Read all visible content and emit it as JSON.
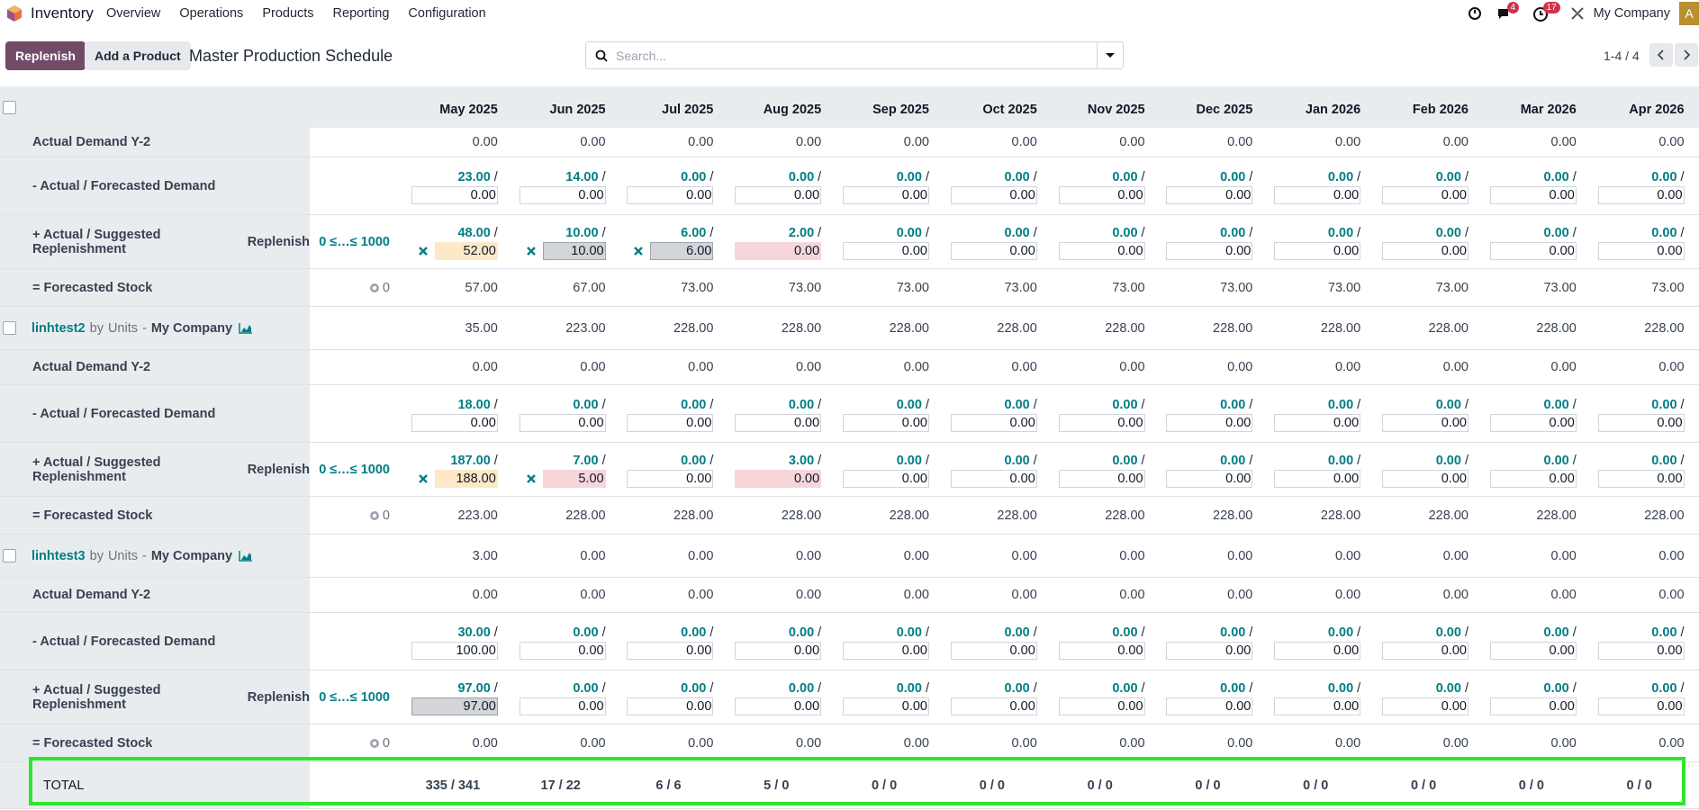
{
  "navbar": {
    "app": "Inventory",
    "menu": [
      "Overview",
      "Operations",
      "Products",
      "Reporting",
      "Configuration"
    ],
    "messages_badge": "4",
    "activities_badge": "17",
    "company": "My Company",
    "avatar": "A"
  },
  "control_panel": {
    "buttons": [
      "Replenish",
      "Add a Product"
    ],
    "title": "Master Production Schedule",
    "search_placeholder": "Search...",
    "pager": "1-4 / 4"
  },
  "table": {
    "months": [
      "May 2025",
      "Jun 2025",
      "Jul 2025",
      "Aug 2025",
      "Sep 2025",
      "Oct 2025",
      "Nov 2025",
      "Dec 2025",
      "Jan 2026",
      "Feb 2026",
      "Mar 2026",
      "Apr 2026"
    ],
    "separator": "/",
    "sections": [
      {
        "product": null,
        "rows": [
          {
            "kind": "y2",
            "label": "Actual Demand Y-2",
            "values": [
              "0.00",
              "0.00",
              "0.00",
              "0.00",
              "0.00",
              "0.00",
              "0.00",
              "0.00",
              "0.00",
              "0.00",
              "0.00",
              "0.00"
            ]
          },
          {
            "kind": "demand",
            "label": "- Actual / Forecasted Demand",
            "actual": [
              "23.00",
              "14.00",
              "0.00",
              "0.00",
              "0.00",
              "0.00",
              "0.00",
              "0.00",
              "0.00",
              "0.00",
              "0.00",
              "0.00"
            ],
            "forecast": [
              "0.00",
              "0.00",
              "0.00",
              "0.00",
              "0.00",
              "0.00",
              "0.00",
              "0.00",
              "0.00",
              "0.00",
              "0.00",
              "0.00"
            ]
          },
          {
            "kind": "replenish",
            "label": "+ Actual / Suggested Replenishment",
            "button": "Replenish",
            "range": "0 ≤…≤ 1000",
            "actual": [
              "48.00",
              "10.00",
              "6.00",
              "2.00",
              "0.00",
              "0.00",
              "0.00",
              "0.00",
              "0.00",
              "0.00",
              "0.00",
              "0.00"
            ],
            "suggested": [
              "52.00",
              "10.00",
              "6.00",
              "0.00",
              "0.00",
              "0.00",
              "0.00",
              "0.00",
              "0.00",
              "0.00",
              "0.00",
              "0.00"
            ],
            "highlight": [
              "warning",
              "muted",
              "muted",
              "danger",
              null,
              null,
              null,
              null,
              null,
              null,
              null,
              null
            ],
            "cancel": [
              true,
              true,
              true,
              false,
              false,
              false,
              false,
              false,
              false,
              false,
              false,
              false
            ]
          },
          {
            "kind": "stock",
            "label": "= Forecasted Stock",
            "safety": "0",
            "values": [
              "57.00",
              "67.00",
              "73.00",
              "73.00",
              "73.00",
              "73.00",
              "73.00",
              "73.00",
              "73.00",
              "73.00",
              "73.00",
              "73.00"
            ]
          }
        ]
      },
      {
        "product": {
          "name": "linhtest2",
          "by": "by",
          "uom": "Units",
          "dash": "-",
          "company": "My Company",
          "values": [
            "35.00",
            "223.00",
            "228.00",
            "228.00",
            "228.00",
            "228.00",
            "228.00",
            "228.00",
            "228.00",
            "228.00",
            "228.00",
            "228.00"
          ]
        },
        "rows": [
          {
            "kind": "y2",
            "label": "Actual Demand Y-2",
            "values": [
              "0.00",
              "0.00",
              "0.00",
              "0.00",
              "0.00",
              "0.00",
              "0.00",
              "0.00",
              "0.00",
              "0.00",
              "0.00",
              "0.00"
            ]
          },
          {
            "kind": "demand",
            "label": "- Actual / Forecasted Demand",
            "actual": [
              "18.00",
              "0.00",
              "0.00",
              "0.00",
              "0.00",
              "0.00",
              "0.00",
              "0.00",
              "0.00",
              "0.00",
              "0.00",
              "0.00"
            ],
            "forecast": [
              "0.00",
              "0.00",
              "0.00",
              "0.00",
              "0.00",
              "0.00",
              "0.00",
              "0.00",
              "0.00",
              "0.00",
              "0.00",
              "0.00"
            ]
          },
          {
            "kind": "replenish",
            "label": "+ Actual / Suggested Replenishment",
            "button": "Replenish",
            "range": "0 ≤…≤ 1000",
            "actual": [
              "187.00",
              "7.00",
              "0.00",
              "3.00",
              "0.00",
              "0.00",
              "0.00",
              "0.00",
              "0.00",
              "0.00",
              "0.00",
              "0.00"
            ],
            "suggested": [
              "188.00",
              "5.00",
              "0.00",
              "0.00",
              "0.00",
              "0.00",
              "0.00",
              "0.00",
              "0.00",
              "0.00",
              "0.00",
              "0.00"
            ],
            "highlight": [
              "warning",
              "danger",
              null,
              "danger",
              null,
              null,
              null,
              null,
              null,
              null,
              null,
              null
            ],
            "cancel": [
              true,
              true,
              false,
              false,
              false,
              false,
              false,
              false,
              false,
              false,
              false,
              false
            ]
          },
          {
            "kind": "stock",
            "label": "= Forecasted Stock",
            "safety": "0",
            "values": [
              "223.00",
              "228.00",
              "228.00",
              "228.00",
              "228.00",
              "228.00",
              "228.00",
              "228.00",
              "228.00",
              "228.00",
              "228.00",
              "228.00"
            ]
          }
        ]
      },
      {
        "product": {
          "name": "linhtest3",
          "by": "by",
          "uom": "Units",
          "dash": "-",
          "company": "My Company",
          "values": [
            "3.00",
            "0.00",
            "0.00",
            "0.00",
            "0.00",
            "0.00",
            "0.00",
            "0.00",
            "0.00",
            "0.00",
            "0.00",
            "0.00"
          ]
        },
        "rows": [
          {
            "kind": "y2",
            "label": "Actual Demand Y-2",
            "values": [
              "0.00",
              "0.00",
              "0.00",
              "0.00",
              "0.00",
              "0.00",
              "0.00",
              "0.00",
              "0.00",
              "0.00",
              "0.00",
              "0.00"
            ]
          },
          {
            "kind": "demand",
            "label": "- Actual / Forecasted Demand",
            "actual": [
              "30.00",
              "0.00",
              "0.00",
              "0.00",
              "0.00",
              "0.00",
              "0.00",
              "0.00",
              "0.00",
              "0.00",
              "0.00",
              "0.00"
            ],
            "forecast": [
              "100.00",
              "0.00",
              "0.00",
              "0.00",
              "0.00",
              "0.00",
              "0.00",
              "0.00",
              "0.00",
              "0.00",
              "0.00",
              "0.00"
            ]
          },
          {
            "kind": "replenish",
            "label": "+ Actual / Suggested Replenishment",
            "button": "Replenish",
            "range": "0 ≤…≤ 1000",
            "actual": [
              "97.00",
              "0.00",
              "0.00",
              "0.00",
              "0.00",
              "0.00",
              "0.00",
              "0.00",
              "0.00",
              "0.00",
              "0.00",
              "0.00"
            ],
            "suggested": [
              "97.00",
              "0.00",
              "0.00",
              "0.00",
              "0.00",
              "0.00",
              "0.00",
              "0.00",
              "0.00",
              "0.00",
              "0.00",
              "0.00"
            ],
            "highlight": [
              "muted",
              null,
              null,
              null,
              null,
              null,
              null,
              null,
              null,
              null,
              null,
              null
            ],
            "cancel": [
              false,
              false,
              false,
              false,
              false,
              false,
              false,
              false,
              false,
              false,
              false,
              false
            ]
          },
          {
            "kind": "stock",
            "label": "= Forecasted Stock",
            "safety": "0",
            "values": [
              "0.00",
              "0.00",
              "0.00",
              "0.00",
              "0.00",
              "0.00",
              "0.00",
              "0.00",
              "0.00",
              "0.00",
              "0.00",
              "0.00"
            ]
          }
        ]
      }
    ],
    "total": {
      "label": "TOTAL",
      "values": [
        "335 / 341",
        "17 / 22",
        "6 / 6",
        "5 / 0",
        "0 / 0",
        "0 / 0",
        "0 / 0",
        "0 / 0",
        "0 / 0",
        "0 / 0",
        "0 / 0",
        "0 / 0"
      ]
    }
  }
}
